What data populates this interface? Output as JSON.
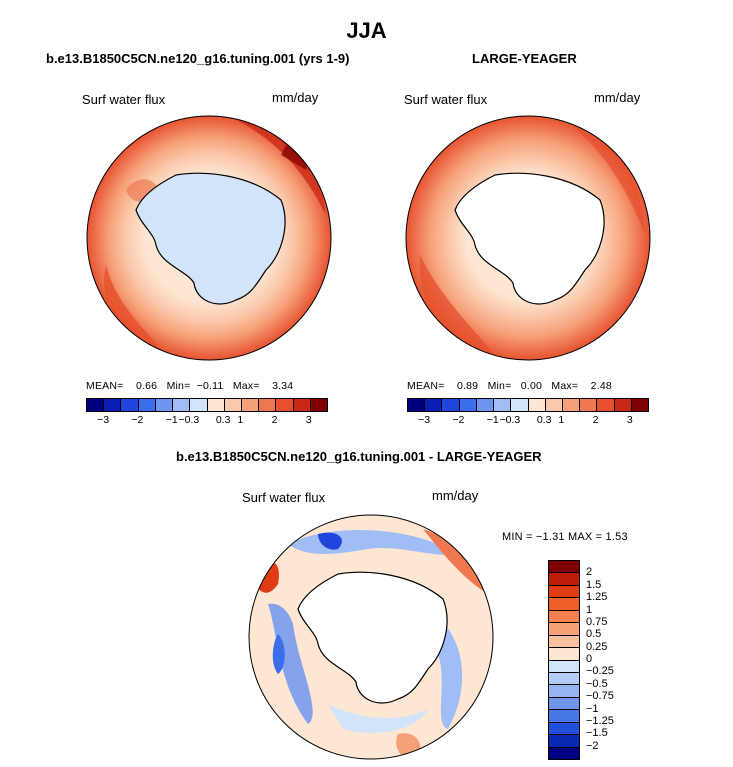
{
  "figure": {
    "season": "JJA"
  },
  "panels": [
    {
      "title": "b.e13.B1850C5CN.ne120_g16.tuning.001 (yrs 1-9)",
      "variable": "Surf water flux",
      "units": "mm/day",
      "stats": {
        "mean_label": "MEAN=",
        "mean": "0.66",
        "min_label": "Min=",
        "min": "−0.11",
        "max_label": "Max=",
        "max": "3.34"
      }
    },
    {
      "title": "LARGE-YEAGER",
      "variable": "Surf water flux",
      "units": "mm/day",
      "stats": {
        "mean_label": "MEAN=",
        "mean": "0.89",
        "min_label": "Min=",
        "min": "0.00",
        "max_label": "Max=",
        "max": "2.48"
      }
    },
    {
      "title": "b.e13.B1850C5CN.ne120_g16.tuning.001 - LARGE-YEAGER",
      "variable": "Surf water flux",
      "units": "mm/day",
      "stats_text": "MIN =  −1.31  MAX =   1.53"
    }
  ],
  "colorbar_abs": {
    "colors": [
      "#00007f",
      "#0a1eb4",
      "#1e46dc",
      "#3c6eeb",
      "#6e96f0",
      "#a0bef5",
      "#d2e4fa",
      "#fde6d2",
      "#fac8aa",
      "#f5a078",
      "#f07850",
      "#e6502d",
      "#c82814",
      "#7f0000"
    ],
    "tick_labels": [
      "−3",
      "−2",
      "−1",
      "−0.3",
      "0.3",
      "1",
      "2",
      "3"
    ]
  },
  "colorbar_diff": {
    "colors": [
      "#7f0000",
      "#c01a08",
      "#e03c14",
      "#f0602a",
      "#f58050",
      "#f8a078",
      "#fac0a0",
      "#fde6d2",
      "#d2e4fa",
      "#b4ccf5",
      "#96b4f0",
      "#6e96eb",
      "#4678e6",
      "#1e50dc",
      "#0a28b4",
      "#00007f"
    ],
    "tick_labels": [
      "2",
      "1.5",
      "1.25",
      "1",
      "0.75",
      "0.5",
      "0.25",
      "0",
      "−0.25",
      "−0.5",
      "−0.75",
      "−1",
      "−1.25",
      "−1.5",
      "−2"
    ]
  }
}
